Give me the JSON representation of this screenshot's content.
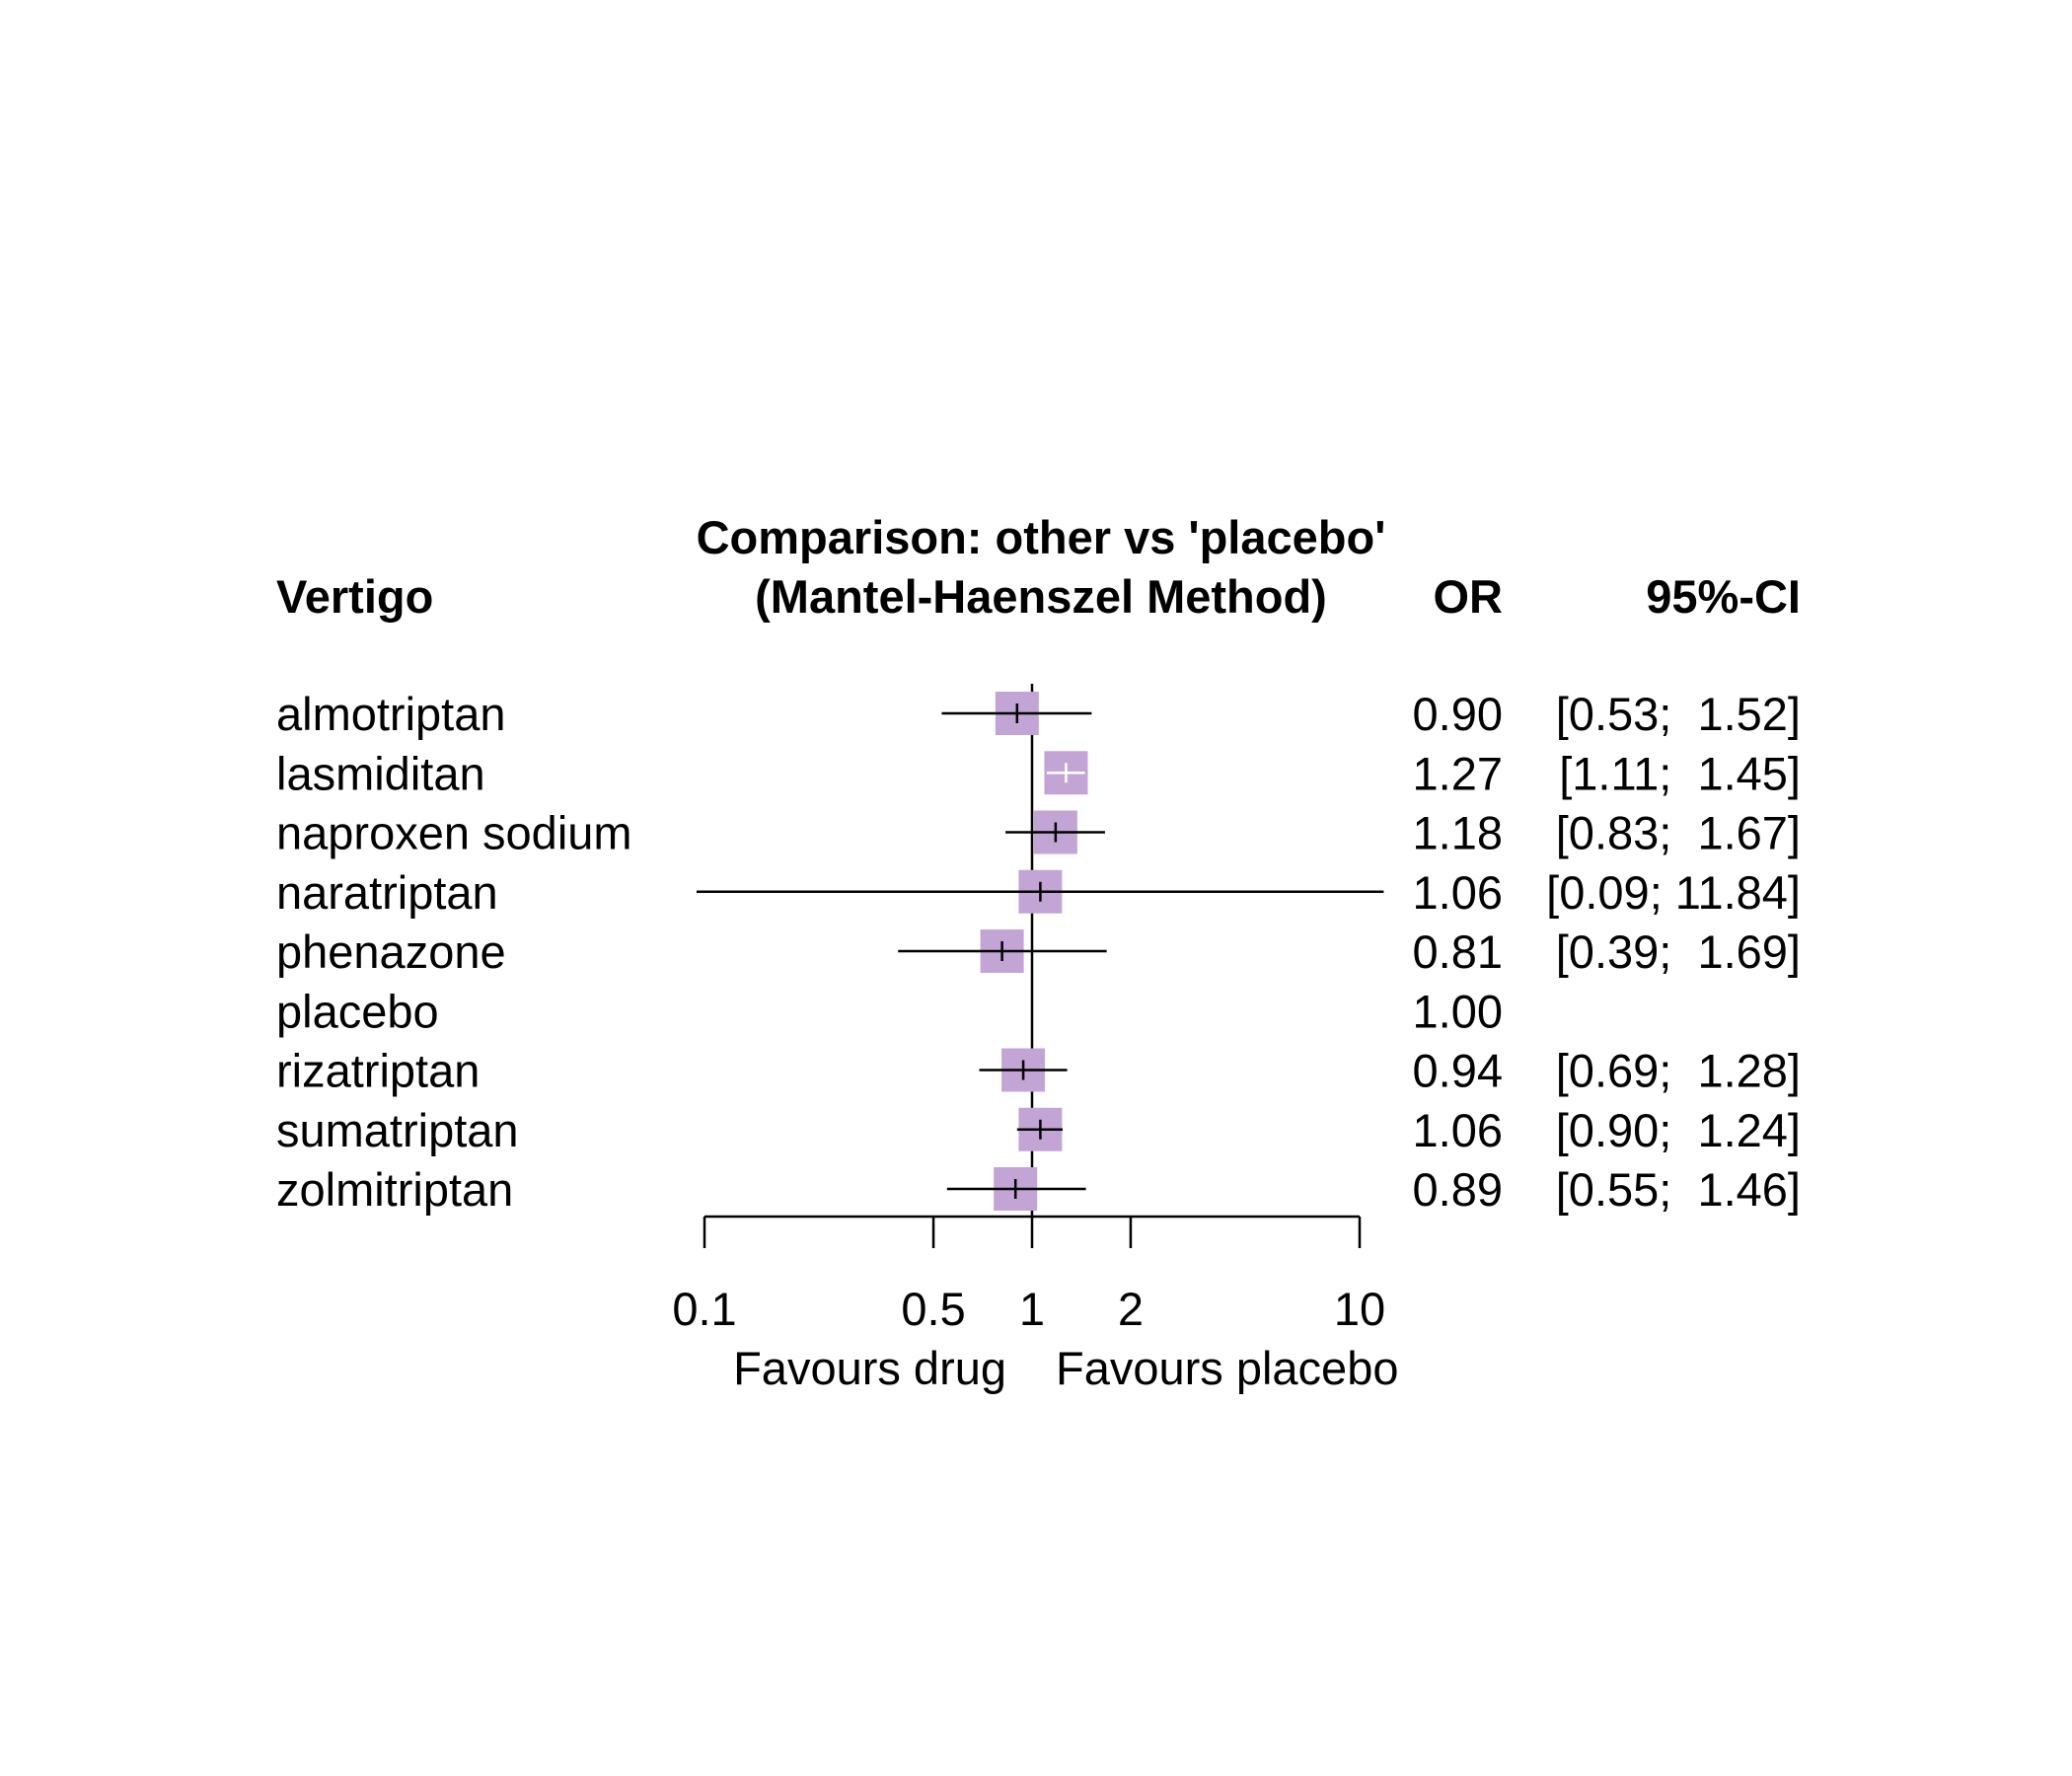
{
  "chart_data": {
    "type": "forest",
    "title_line1": "Comparison: other vs 'placebo'",
    "title_line2": "(Mantel-Haenszel Method)",
    "left_header": "Vertigo",
    "or_header": "OR",
    "ci_header": "95%-CI",
    "x_scale": "log",
    "xlim": [
      0.1,
      10
    ],
    "reference_value": 1,
    "ticks": [
      0.1,
      0.5,
      1,
      2,
      10
    ],
    "tick_labels": [
      "0.1",
      "0.5",
      "1",
      "2",
      "10"
    ],
    "label_left": "Favours drug",
    "label_right": "Favours placebo",
    "marker_color": "#C3A5D5",
    "rows": [
      {
        "name": "almotriptan",
        "or": 0.9,
        "lo": 0.53,
        "hi": 1.52,
        "or_text": "0.90",
        "ci_text": "[0.53;  1.52]",
        "size": 1.0,
        "tick_color": "#000000"
      },
      {
        "name": "lasmiditan",
        "or": 1.27,
        "lo": 1.11,
        "hi": 1.45,
        "or_text": "1.27",
        "ci_text": "[1.11;  1.45]",
        "size": 1.0,
        "tick_color": "#ffffff"
      },
      {
        "name": "naproxen sodium",
        "or": 1.18,
        "lo": 0.83,
        "hi": 1.67,
        "or_text": "1.18",
        "ci_text": "[0.83;  1.67]",
        "size": 1.0,
        "tick_color": "#000000"
      },
      {
        "name": "naratriptan",
        "or": 1.06,
        "lo": 0.09,
        "hi": 11.84,
        "or_text": "1.06",
        "ci_text": "[0.09; 11.84]",
        "size": 1.0,
        "tick_color": "#000000"
      },
      {
        "name": "phenazone",
        "or": 0.81,
        "lo": 0.39,
        "hi": 1.69,
        "or_text": "0.81",
        "ci_text": "[0.39;  1.69]",
        "size": 1.0,
        "tick_color": "#000000"
      },
      {
        "name": "placebo",
        "or": 1.0,
        "lo": null,
        "hi": null,
        "or_text": "1.00",
        "ci_text": "",
        "size": 0,
        "tick_color": "#000000"
      },
      {
        "name": "rizatriptan",
        "or": 0.94,
        "lo": 0.69,
        "hi": 1.28,
        "or_text": "0.94",
        "ci_text": "[0.69;  1.28]",
        "size": 1.0,
        "tick_color": "#000000"
      },
      {
        "name": "sumatriptan",
        "or": 1.06,
        "lo": 0.9,
        "hi": 1.24,
        "or_text": "1.06",
        "ci_text": "[0.90;  1.24]",
        "size": 1.0,
        "tick_color": "#000000"
      },
      {
        "name": "zolmitriptan",
        "or": 0.89,
        "lo": 0.55,
        "hi": 1.46,
        "or_text": "0.89",
        "ci_text": "[0.55;  1.46]",
        "size": 1.0,
        "tick_color": "#000000"
      }
    ]
  }
}
